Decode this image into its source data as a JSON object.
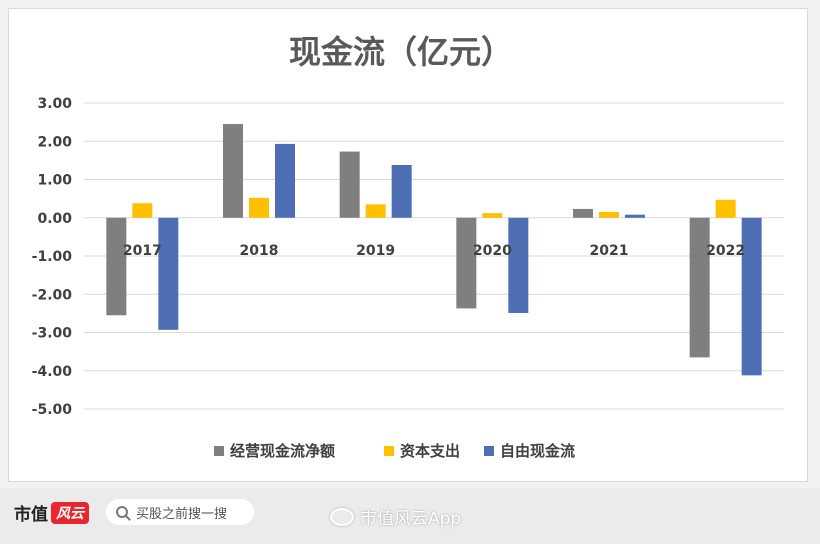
{
  "chart_data": {
    "type": "bar",
    "title": "现金流（亿元）",
    "categories": [
      "2017",
      "2018",
      "2019",
      "2020",
      "2021",
      "2022"
    ],
    "series": [
      {
        "name": "经营现金流净额",
        "color": "#7f7f7f",
        "values": [
          -2.55,
          2.45,
          1.73,
          -2.37,
          0.23,
          -3.65
        ]
      },
      {
        "name": "资本支出",
        "color": "#ffc000",
        "values": [
          0.38,
          0.52,
          0.35,
          0.12,
          0.15,
          0.47
        ]
      },
      {
        "name": "自由现金流",
        "color": "#4f6fb5",
        "values": [
          -2.93,
          1.93,
          1.38,
          -2.49,
          0.08,
          -4.12
        ]
      }
    ],
    "ylim": [
      -5,
      3
    ],
    "yticks": [
      "3.00",
      "2.00",
      "1.00",
      "0.00",
      "-1.00",
      "-2.00",
      "-3.00",
      "-4.00",
      "-5.00"
    ],
    "ytick_values": [
      3,
      2,
      1,
      0,
      -1,
      -2,
      -3,
      -4,
      -5
    ],
    "grid": true,
    "legend_position": "bottom"
  },
  "footer": {
    "brand": "市值",
    "brand_badge": "风云",
    "search_placeholder": "买股之前搜一搜",
    "watermark": "市值风云App"
  }
}
